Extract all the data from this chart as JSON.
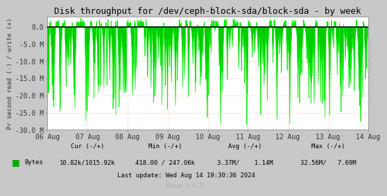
{
  "title": "Disk throughput for /dev/ceph-block-sda/block-sda - by week",
  "ylabel": "Pr second read (-) / write (+)",
  "xlabel_ticks": [
    "06 Aug",
    "07 Aug",
    "08 Aug",
    "09 Aug",
    "10 Aug",
    "11 Aug",
    "12 Aug",
    "13 Aug",
    "14 Aug"
  ],
  "ylim": [
    -30000000,
    3000000
  ],
  "yticks": [
    0,
    -5000000,
    -10000000,
    -15000000,
    -20000000,
    -25000000,
    -30000000
  ],
  "ytick_labels": [
    "0.0",
    "-5.0 M",
    "-10.0 M",
    "-15.0 M",
    "-20.0 M",
    "-25.0 M",
    "-30.0 M"
  ],
  "line_color": "#00EE00",
  "fill_color": "#00CC00",
  "bg_color": "#C8C8C8",
  "plot_bg_color": "#FFFFFF",
  "grid_color": "#FF9999",
  "zero_line_color": "#000000",
  "legend_color": "#00AA00",
  "munin_text": "Munin 2.0.75",
  "rrdtool_text": "RRDTOOL / TOBI OETIKER",
  "title_fontsize": 9,
  "axis_fontsize": 6.5,
  "tick_fontsize": 7,
  "stats_fontsize": 6.5,
  "n_points": 2000,
  "seed": 42
}
